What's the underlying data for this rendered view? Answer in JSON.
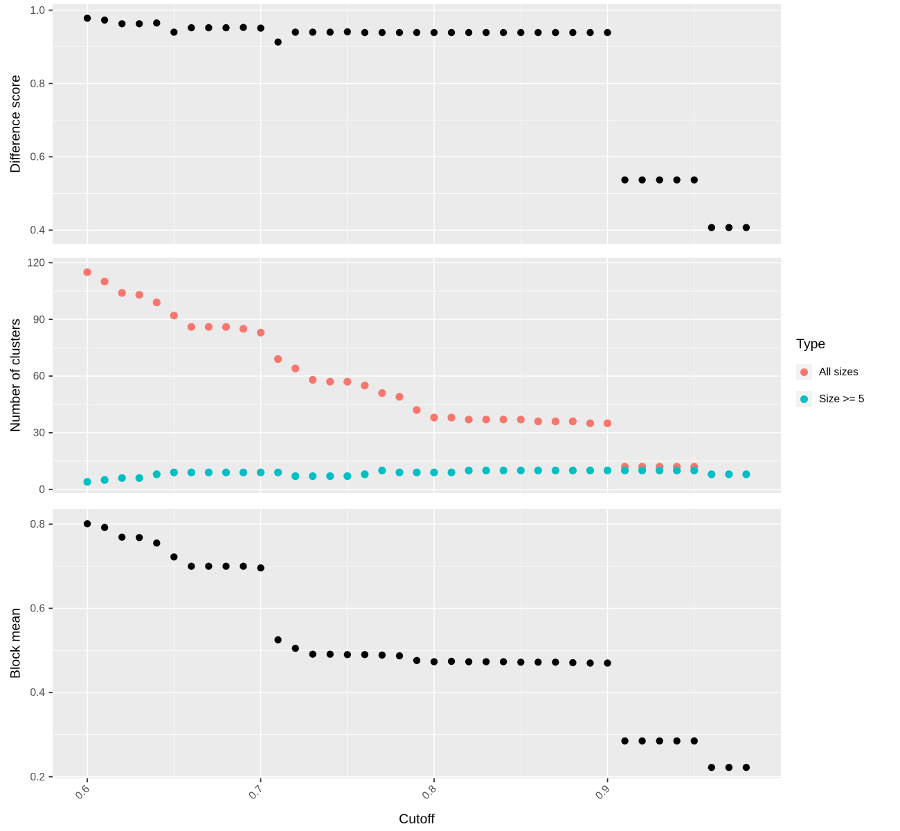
{
  "figure": {
    "xlabel": "Cutoff",
    "x_axis": {
      "ticks": [
        0.6,
        0.7,
        0.8,
        0.9
      ],
      "tick_labels": [
        "0.6",
        "0.7",
        "0.8",
        "0.9"
      ],
      "minor_ticks": [
        0.65,
        0.75,
        0.85,
        0.95
      ],
      "xlim": [
        0.58,
        1.0
      ]
    },
    "legend": {
      "title": "Type",
      "items": [
        {
          "label": "All sizes",
          "color": "#F8766D"
        },
        {
          "label": "Size >= 5",
          "color": "#00BFC4"
        }
      ]
    },
    "colors": {
      "panel_background": "#EBEBEB",
      "gridline": "#FFFFFF",
      "tick_mark": "#333333",
      "tick_label": "#4D4D4D",
      "black_series": "#000000",
      "all_sizes": "#F8766D",
      "size_ge_5": "#00BFC4",
      "legend_key_background": "#F2F2F2"
    }
  },
  "chart_data": [
    {
      "type": "scatter",
      "ylabel": "Difference score",
      "ylim": [
        0.3628,
        1.0164
      ],
      "yticks": [
        0.4,
        0.6,
        0.8,
        1.0
      ],
      "ytick_labels": [
        "0.4",
        "0.6",
        "0.8",
        "1.0"
      ],
      "yminor": [
        0.5,
        0.7,
        0.9
      ],
      "series": [
        {
          "name": "difference-score",
          "color": "#000000",
          "x": [
            0.6,
            0.61,
            0.62,
            0.63,
            0.64,
            0.65,
            0.66,
            0.67,
            0.68,
            0.69,
            0.7,
            0.71,
            0.72,
            0.73,
            0.74,
            0.75,
            0.76,
            0.77,
            0.78,
            0.79,
            0.8,
            0.81,
            0.82,
            0.83,
            0.84,
            0.85,
            0.86,
            0.87,
            0.88,
            0.89,
            0.9,
            0.91,
            0.92,
            0.93,
            0.94,
            0.95,
            0.96,
            0.97,
            0.98
          ],
          "y": [
            0.978,
            0.973,
            0.963,
            0.963,
            0.965,
            0.94,
            0.952,
            0.952,
            0.952,
            0.953,
            0.951,
            0.913,
            0.94,
            0.94,
            0.94,
            0.941,
            0.939,
            0.939,
            0.939,
            0.939,
            0.939,
            0.939,
            0.939,
            0.939,
            0.939,
            0.939,
            0.939,
            0.939,
            0.939,
            0.939,
            0.939,
            0.537,
            0.537,
            0.537,
            0.537,
            0.537,
            0.407,
            0.407,
            0.407
          ]
        }
      ]
    },
    {
      "type": "scatter",
      "ylabel": "Number of clusters",
      "ylim": [
        -1.94,
        122.7
      ],
      "yticks": [
        0,
        30,
        60,
        90,
        120
      ],
      "ytick_labels": [
        "0",
        "30",
        "60",
        "90",
        "120"
      ],
      "yminor": [
        15,
        45,
        75,
        105
      ],
      "series": [
        {
          "name": "All sizes",
          "color": "#F8766D",
          "x": [
            0.6,
            0.61,
            0.62,
            0.63,
            0.64,
            0.65,
            0.66,
            0.67,
            0.68,
            0.69,
            0.7,
            0.71,
            0.72,
            0.73,
            0.74,
            0.75,
            0.76,
            0.77,
            0.78,
            0.79,
            0.8,
            0.81,
            0.82,
            0.83,
            0.84,
            0.85,
            0.86,
            0.87,
            0.88,
            0.89,
            0.9,
            0.91,
            0.92,
            0.93,
            0.94,
            0.95
          ],
          "y": [
            115,
            110,
            104,
            103,
            99,
            92,
            86,
            86,
            86,
            85,
            83,
            69,
            64,
            58,
            57,
            57,
            55,
            51,
            49,
            42,
            38,
            38,
            37,
            37,
            37,
            37,
            36,
            36,
            36,
            35,
            35,
            12,
            12,
            12,
            12,
            12
          ]
        },
        {
          "name": "Size >= 5",
          "color": "#00BFC4",
          "x": [
            0.6,
            0.61,
            0.62,
            0.63,
            0.64,
            0.65,
            0.66,
            0.67,
            0.68,
            0.69,
            0.7,
            0.71,
            0.72,
            0.73,
            0.74,
            0.75,
            0.76,
            0.77,
            0.78,
            0.79,
            0.8,
            0.81,
            0.82,
            0.83,
            0.84,
            0.85,
            0.86,
            0.87,
            0.88,
            0.89,
            0.9,
            0.91,
            0.92,
            0.93,
            0.94,
            0.95,
            0.96,
            0.97,
            0.98
          ],
          "y": [
            4,
            5,
            6,
            6,
            8,
            9,
            9,
            9,
            9,
            9,
            9,
            9,
            7,
            7,
            7,
            7,
            8,
            10,
            9,
            9,
            9,
            9,
            10,
            10,
            10,
            10,
            10,
            10,
            10,
            10,
            10,
            10,
            10,
            10,
            10,
            10,
            8,
            8,
            8
          ]
        }
      ]
    },
    {
      "type": "scatter",
      "ylabel": "Block mean",
      "ylim": [
        0.196,
        0.836
      ],
      "yticks": [
        0.2,
        0.4,
        0.6,
        0.8
      ],
      "ytick_labels": [
        "0.2",
        "0.4",
        "0.6",
        "0.8"
      ],
      "yminor": [
        0.3,
        0.5,
        0.7
      ],
      "series": [
        {
          "name": "block-mean",
          "color": "#000000",
          "x": [
            0.6,
            0.61,
            0.62,
            0.63,
            0.64,
            0.65,
            0.66,
            0.67,
            0.68,
            0.69,
            0.7,
            0.71,
            0.72,
            0.73,
            0.74,
            0.75,
            0.76,
            0.77,
            0.78,
            0.79,
            0.8,
            0.81,
            0.82,
            0.83,
            0.84,
            0.85,
            0.86,
            0.87,
            0.88,
            0.89,
            0.9,
            0.91,
            0.92,
            0.93,
            0.94,
            0.95,
            0.96,
            0.97,
            0.98
          ],
          "y": [
            0.801,
            0.792,
            0.769,
            0.768,
            0.755,
            0.722,
            0.7,
            0.7,
            0.7,
            0.7,
            0.696,
            0.525,
            0.505,
            0.491,
            0.491,
            0.49,
            0.49,
            0.489,
            0.487,
            0.476,
            0.473,
            0.474,
            0.473,
            0.473,
            0.473,
            0.472,
            0.472,
            0.472,
            0.471,
            0.47,
            0.47,
            0.285,
            0.285,
            0.285,
            0.285,
            0.285,
            0.222,
            0.222,
            0.222
          ]
        }
      ]
    }
  ]
}
